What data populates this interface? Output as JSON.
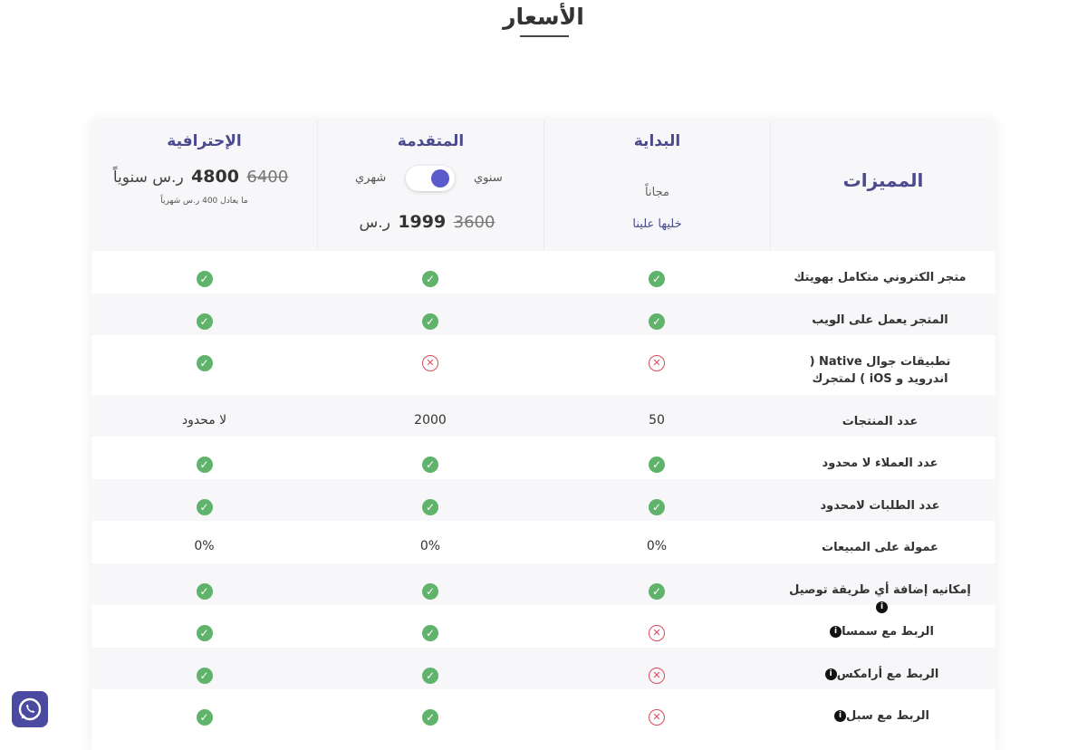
{
  "page": {
    "title": "الأسعار"
  },
  "header": {
    "features_title": "المميزات",
    "starter": {
      "name": "البداية",
      "free_label": "مجاناً",
      "link": "خليها علينا"
    },
    "advanced": {
      "name": "المتقدمة",
      "toggle_yearly": "سنوي",
      "toggle_monthly": "شهري",
      "currency": "ر.س",
      "price": "1999",
      "old_price": "3600"
    },
    "pro": {
      "name": "الإحترافية",
      "currency": "ر.س",
      "period": "سنوياً",
      "price": "4800",
      "old_price": "6400",
      "note": "ما يعادل 400 ر.س شهرياً"
    }
  },
  "rows": [
    {
      "feature": "متجر الكتروني متكامل بهويتك",
      "v1": "ok",
      "v2": "ok",
      "v3": "ok"
    },
    {
      "feature": "المتجر يعمل على الويب",
      "v1": "ok",
      "v2": "ok",
      "v3": "ok"
    },
    {
      "feature": "تطبيقات جوال Native ( اندرويد و iOS ) لمتجرك",
      "v1": "x",
      "v2": "x",
      "v3": "ok"
    },
    {
      "feature": "عدد المنتجات",
      "v1": "50",
      "v2": "2000",
      "v3": "لا محدود"
    },
    {
      "feature": "عدد العملاء لا محدود",
      "v1": "ok",
      "v2": "ok",
      "v3": "ok"
    },
    {
      "feature": "عدد الطلبات لامحدود",
      "v1": "ok",
      "v2": "ok",
      "v3": "ok"
    },
    {
      "feature": "عمولة على المبيعات",
      "v1": "0%",
      "v2": "0%",
      "v3": "0%"
    },
    {
      "feature": "إمكانيه إضافة أي طريقة توصيل",
      "v1": "ok",
      "v2": "ok",
      "v3": "ok",
      "info": true
    },
    {
      "feature": "الربط مع سمسا",
      "v1": "x",
      "v2": "ok",
      "v3": "ok",
      "info": true
    },
    {
      "feature": "الربط مع أرامكس",
      "v1": "x",
      "v2": "ok",
      "v3": "ok",
      "info": true
    },
    {
      "feature": "الربط مع سبل",
      "v1": "x",
      "v2": "ok",
      "v3": "ok",
      "info": true
    }
  ],
  "icons": {
    "ok": "check-circle-icon",
    "x": "x-circle-icon",
    "info": "info-icon",
    "whatsapp": "whatsapp-icon"
  },
  "colors": {
    "accent": "#4a4a8c",
    "ok": "#5fb36a",
    "x": "#d94a5a",
    "whatsapp_bg": "#4a4aa0"
  }
}
